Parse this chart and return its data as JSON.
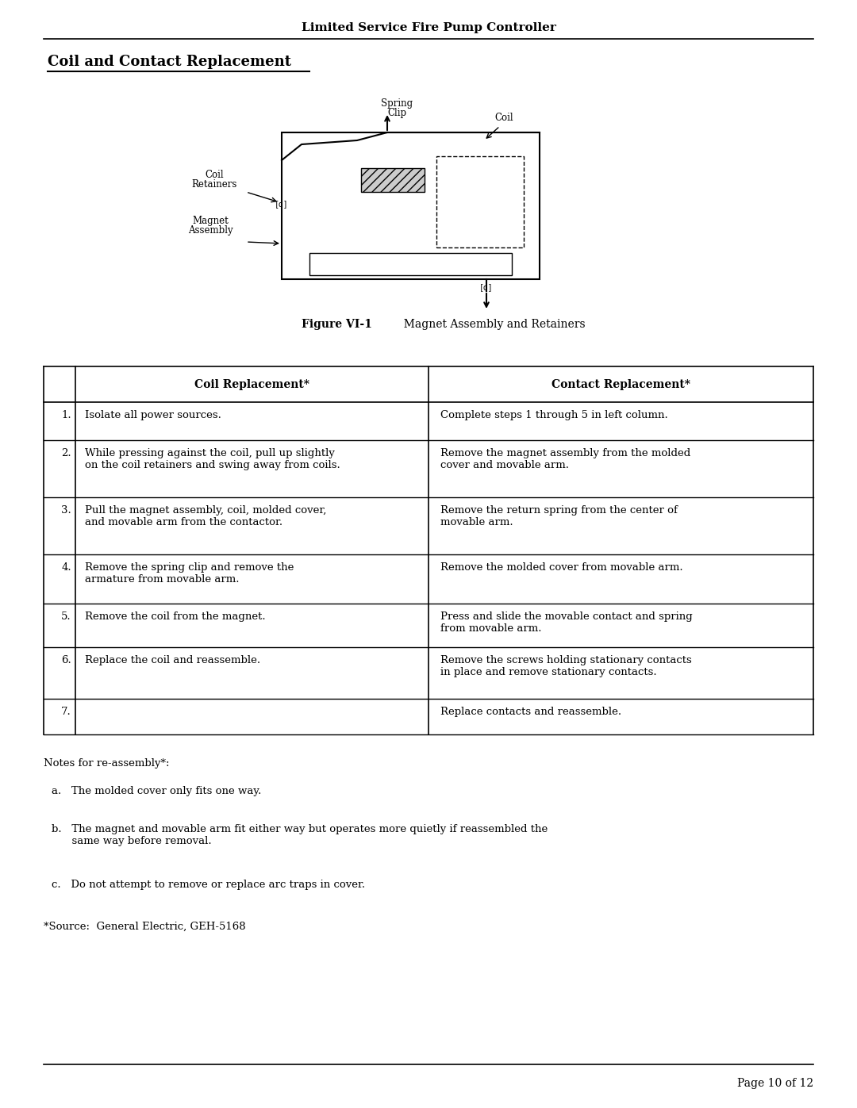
{
  "page_title": "Limited Service Fire Pump Controller",
  "section_title": "Coil and Contact Replacement",
  "figure_caption_bold": "Figure VI-1",
  "figure_caption_normal": "  Magnet Assembly and Retainers",
  "table_headers": [
    "Coil Replacement*",
    "Contact Replacement*"
  ],
  "table_rows": [
    [
      "1.",
      "Isolate all power sources.",
      "Complete steps 1 through 5 in left column."
    ],
    [
      "2.",
      "While pressing against the coil, pull up slightly\non the coil retainers and swing away from coils.",
      "Remove the magnet assembly from the molded\ncover and movable arm."
    ],
    [
      "3.",
      "Pull the magnet assembly, coil, molded cover,\nand movable arm from the contactor.",
      "Remove the return spring from the center of\nmovable arm."
    ],
    [
      "4.",
      "Remove the spring clip and remove the\narmature from movable arm.",
      "Remove the molded cover from movable arm."
    ],
    [
      "5.",
      "Remove the coil from the magnet.",
      "Press and slide the movable contact and spring\nfrom movable arm."
    ],
    [
      "6.",
      "Replace the coil and reassemble.",
      "Remove the screws holding stationary contacts\nin place and remove stationary contacts."
    ],
    [
      "7.",
      "",
      "Replace contacts and reassemble."
    ]
  ],
  "notes_header": "Notes for re-assembly*:",
  "notes": [
    "a.   The molded cover only fits one way.",
    "b.   The magnet and movable arm fit either way but operates more quietly if reassembled the\n      same way before removal.",
    "c.   Do not attempt to remove or replace arc traps in cover."
  ],
  "source": "*Source:  General Electric, GEH-5168",
  "page_number": "Page 10 of 12",
  "bg_color": "#ffffff",
  "text_color": "#000000"
}
